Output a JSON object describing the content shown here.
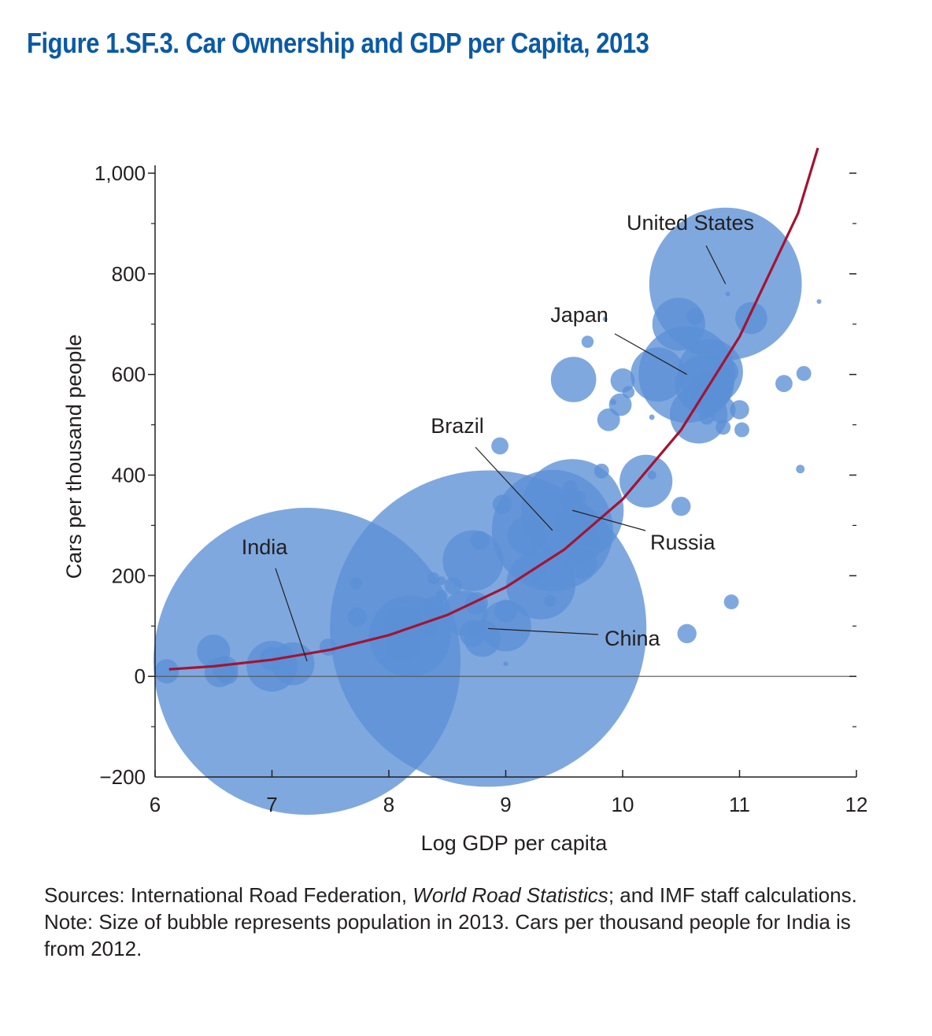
{
  "title": "Figure 1.SF.3.  Car Ownership and GDP per Capita, 2013",
  "colors": {
    "title": "#0a5aa6",
    "bubble": "#5b8fd6",
    "curve": "#a31432",
    "text": "#231f20"
  },
  "chart_data": {
    "type": "scatter",
    "xlabel": "Log GDP per capita",
    "ylabel": "Cars per thousand people",
    "xlim": [
      6,
      12
    ],
    "ylim": [
      -200,
      1000
    ],
    "x_ticks": [
      "6",
      "7",
      "8",
      "9",
      "10",
      "11",
      "12"
    ],
    "y_ticks": [
      "−200",
      "0",
      "200",
      "400",
      "600",
      "800",
      "1,000"
    ],
    "grid": false,
    "bubble_size": "population (millions)",
    "labeled_points": [
      {
        "label": "India",
        "x": 7.3,
        "y": 30,
        "population": 1280
      },
      {
        "label": "China",
        "x": 8.85,
        "y": 95,
        "population": 1360
      },
      {
        "label": "Brazil",
        "x": 9.4,
        "y": 290,
        "population": 200
      },
      {
        "label": "Russia",
        "x": 9.57,
        "y": 330,
        "population": 143
      },
      {
        "label": "Japan",
        "x": 10.55,
        "y": 600,
        "population": 127
      },
      {
        "label": "United States",
        "x": 10.88,
        "y": 780,
        "population": 316
      }
    ],
    "points": [
      {
        "x": 6.1,
        "y": 10,
        "population": 8
      },
      {
        "x": 6.5,
        "y": 50,
        "population": 15
      },
      {
        "x": 6.55,
        "y": 8,
        "population": 12
      },
      {
        "x": 6.6,
        "y": 15,
        "population": 9
      },
      {
        "x": 6.62,
        "y": 5,
        "population": 6
      },
      {
        "x": 7.0,
        "y": 20,
        "population": 35
      },
      {
        "x": 7.0,
        "y": 35,
        "population": 8
      },
      {
        "x": 7.18,
        "y": 25,
        "population": 25
      },
      {
        "x": 7.48,
        "y": 58,
        "population": 4
      },
      {
        "x": 7.72,
        "y": 185,
        "population": 2
      },
      {
        "x": 7.73,
        "y": 118,
        "population": 5
      },
      {
        "x": 7.85,
        "y": 78,
        "population": 0.5
      },
      {
        "x": 8.18,
        "y": 80,
        "population": 90
      },
      {
        "x": 8.12,
        "y": 100,
        "population": 20
      },
      {
        "x": 8.12,
        "y": 60,
        "population": 15
      },
      {
        "x": 8.15,
        "y": 108,
        "population": 8
      },
      {
        "x": 8.22,
        "y": 120,
        "population": 3
      },
      {
        "x": 8.38,
        "y": 138,
        "population": 6
      },
      {
        "x": 8.36,
        "y": 128,
        "population": 3
      },
      {
        "x": 8.36,
        "y": 92,
        "population": 4
      },
      {
        "x": 8.38,
        "y": 195,
        "population": 2
      },
      {
        "x": 8.45,
        "y": 190,
        "population": 1
      },
      {
        "x": 8.55,
        "y": 180,
        "population": 4
      },
      {
        "x": 8.45,
        "y": 160,
        "population": 2
      },
      {
        "x": 8.65,
        "y": 125,
        "population": 28
      },
      {
        "x": 8.72,
        "y": 230,
        "population": 50
      },
      {
        "x": 8.72,
        "y": 85,
        "population": 10
      },
      {
        "x": 8.75,
        "y": 145,
        "population": 7
      },
      {
        "x": 8.78,
        "y": 270,
        "population": 5
      },
      {
        "x": 8.8,
        "y": 75,
        "population": 18
      },
      {
        "x": 8.95,
        "y": 458,
        "population": 4
      },
      {
        "x": 8.97,
        "y": 342,
        "population": 5
      },
      {
        "x": 9.0,
        "y": 100,
        "population": 35
      },
      {
        "x": 9.0,
        "y": 130,
        "population": 7
      },
      {
        "x": 9.0,
        "y": 25,
        "population": 0.3
      },
      {
        "x": 9.18,
        "y": 280,
        "population": 20
      },
      {
        "x": 9.28,
        "y": 205,
        "population": 3
      },
      {
        "x": 9.3,
        "y": 182,
        "population": 65
      },
      {
        "x": 9.38,
        "y": 150,
        "population": 2
      },
      {
        "x": 9.55,
        "y": 355,
        "population": 5
      },
      {
        "x": 9.55,
        "y": 375,
        "population": 3
      },
      {
        "x": 9.58,
        "y": 590,
        "population": 28
      },
      {
        "x": 9.6,
        "y": 300,
        "population": 25
      },
      {
        "x": 9.62,
        "y": 355,
        "population": 3
      },
      {
        "x": 9.65,
        "y": 225,
        "population": 13
      },
      {
        "x": 9.75,
        "y": 268,
        "population": 3
      },
      {
        "x": 9.82,
        "y": 408,
        "population": 3
      },
      {
        "x": 9.7,
        "y": 665,
        "population": 2
      },
      {
        "x": 9.85,
        "y": 710,
        "population": 0.3
      },
      {
        "x": 9.88,
        "y": 510,
        "population": 7
      },
      {
        "x": 9.92,
        "y": 545,
        "population": 0.5
      },
      {
        "x": 9.98,
        "y": 540,
        "population": 7
      },
      {
        "x": 10.0,
        "y": 588,
        "population": 8
      },
      {
        "x": 10.05,
        "y": 565,
        "population": 2
      },
      {
        "x": 10.2,
        "y": 388,
        "population": 38
      },
      {
        "x": 10.25,
        "y": 400,
        "population": 1
      },
      {
        "x": 10.25,
        "y": 515,
        "population": 0.4
      },
      {
        "x": 10.3,
        "y": 600,
        "population": 40
      },
      {
        "x": 10.48,
        "y": 700,
        "population": 38
      },
      {
        "x": 10.5,
        "y": 338,
        "population": 5
      },
      {
        "x": 10.55,
        "y": 85,
        "population": 5
      },
      {
        "x": 10.62,
        "y": 715,
        "population": 4
      },
      {
        "x": 10.65,
        "y": 520,
        "population": 45
      },
      {
        "x": 10.7,
        "y": 580,
        "population": 47
      },
      {
        "x": 10.75,
        "y": 605,
        "population": 58
      },
      {
        "x": 10.75,
        "y": 570,
        "population": 22
      },
      {
        "x": 10.72,
        "y": 515,
        "population": 3
      },
      {
        "x": 10.8,
        "y": 560,
        "population": 5
      },
      {
        "x": 10.85,
        "y": 530,
        "population": 10
      },
      {
        "x": 10.86,
        "y": 495,
        "population": 3
      },
      {
        "x": 10.88,
        "y": 605,
        "population": 9
      },
      {
        "x": 10.9,
        "y": 760,
        "population": 0.3
      },
      {
        "x": 10.93,
        "y": 148,
        "population": 3
      },
      {
        "x": 11.0,
        "y": 530,
        "population": 5
      },
      {
        "x": 11.02,
        "y": 490,
        "population": 3
      },
      {
        "x": 11.1,
        "y": 712,
        "population": 14
      },
      {
        "x": 11.38,
        "y": 582,
        "population": 4
      },
      {
        "x": 11.52,
        "y": 412,
        "population": 1
      },
      {
        "x": 11.55,
        "y": 602,
        "population": 3
      },
      {
        "x": 11.68,
        "y": 745,
        "population": 0.3
      }
    ],
    "fit_curve": {
      "type": "exponential",
      "x": [
        6.12,
        6.5,
        7.0,
        7.5,
        8.0,
        8.5,
        9.0,
        9.5,
        10.0,
        10.5,
        11.0,
        11.5,
        11.67
      ],
      "y": [
        14,
        20,
        33,
        53,
        82,
        122,
        177,
        252,
        352,
        490,
        675,
        920,
        1050
      ]
    }
  },
  "sources": {
    "prefix": "Sources: International Road Federation, ",
    "italic": "World Road Statistics",
    "suffix": "; and IMF staff calculations."
  },
  "note": "Note: Size of bubble represents population in 2013. Cars per thousand people for India is from 2012."
}
